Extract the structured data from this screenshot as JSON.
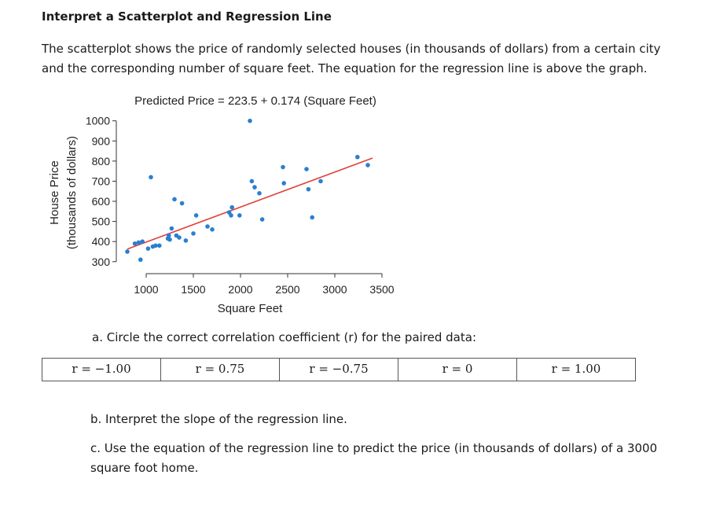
{
  "worksheet": {
    "title": "Interpret a Scatterplot and Regression Line",
    "intro": "The scatterplot shows the price of randomly selected houses (in thousands of dollars) from a certain city and the corresponding number of square feet.  The equation for the regression line is above the graph.",
    "question_a": "a. Circle the correct correlation coefficient (r) for the paired data:",
    "choices": [
      "r = −1.00",
      "r = 0.75",
      "r = −0.75",
      "r = 0",
      "r = 1.00"
    ],
    "question_b": "b. Interpret the slope of the regression line.",
    "question_c": "c. Use the equation of the regression line to predict the price (in thousands of dollars) of a 3000 square foot home."
  },
  "chart_data": {
    "type": "scatter",
    "title": "Predicted Price = 223.5 + 0.174 (Square Feet)",
    "xlabel": "Square Feet",
    "ylabel": [
      "House Price",
      "(thousands of dollars)"
    ],
    "xlim": [
      700,
      3700
    ],
    "ylim": [
      260,
      1030
    ],
    "xticks": [
      1000,
      1500,
      2000,
      2500,
      3000,
      3500
    ],
    "yticks": [
      300,
      400,
      500,
      600,
      700,
      800,
      900,
      1000
    ],
    "grid": false,
    "regression": {
      "intercept": 223.5,
      "slope": 0.174,
      "x_range": [
        800,
        3400
      ],
      "color": "#e0413a"
    },
    "point_color": "#2a7fd0",
    "points": [
      [
        800,
        350
      ],
      [
        880,
        390
      ],
      [
        920,
        395
      ],
      [
        940,
        310
      ],
      [
        960,
        400
      ],
      [
        1020,
        365
      ],
      [
        1050,
        720
      ],
      [
        1070,
        375
      ],
      [
        1100,
        380
      ],
      [
        1140,
        380
      ],
      [
        1230,
        415
      ],
      [
        1240,
        430
      ],
      [
        1250,
        410
      ],
      [
        1270,
        465
      ],
      [
        1300,
        610
      ],
      [
        1320,
        430
      ],
      [
        1350,
        420
      ],
      [
        1380,
        590
      ],
      [
        1420,
        405
      ],
      [
        1500,
        440
      ],
      [
        1530,
        530
      ],
      [
        1650,
        475
      ],
      [
        1700,
        460
      ],
      [
        1880,
        545
      ],
      [
        1900,
        530
      ],
      [
        1910,
        570
      ],
      [
        1990,
        530
      ],
      [
        2100,
        1000
      ],
      [
        2120,
        700
      ],
      [
        2150,
        670
      ],
      [
        2200,
        640
      ],
      [
        2230,
        510
      ],
      [
        2450,
        770
      ],
      [
        2460,
        690
      ],
      [
        2700,
        760
      ],
      [
        2720,
        660
      ],
      [
        2760,
        520
      ],
      [
        2850,
        700
      ],
      [
        3240,
        820
      ],
      [
        3350,
        780
      ]
    ]
  }
}
